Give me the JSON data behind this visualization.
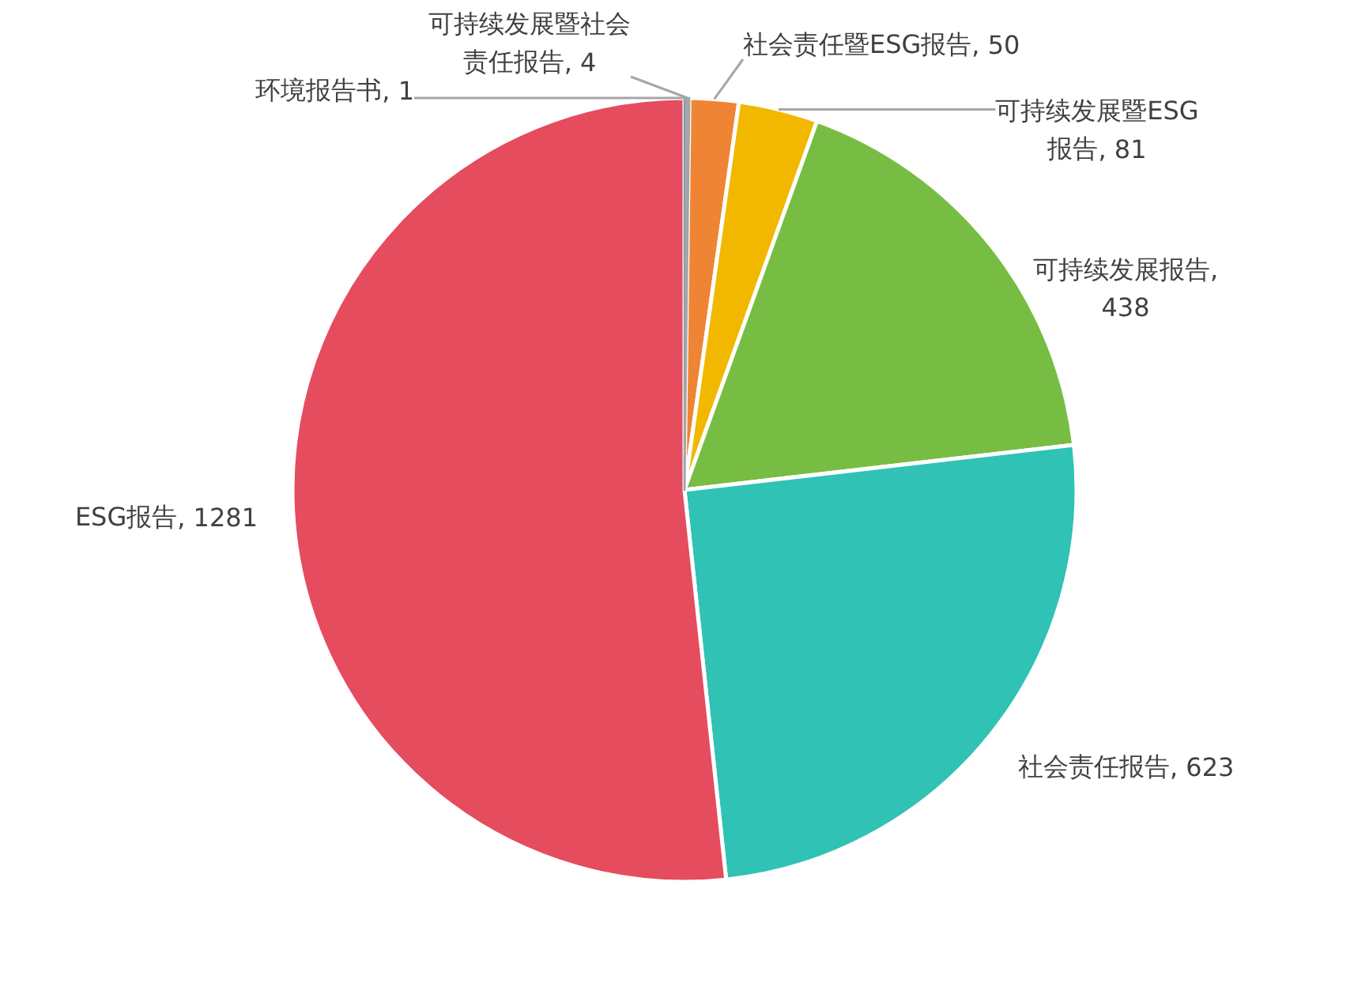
{
  "chart_data": {
    "type": "pie",
    "categories": [
      "环境报告书",
      "可持续发展暨社会责任报告",
      "社会责任暨ESG报告",
      "可持续发展暨ESG报告",
      "可持续发展报告",
      "社会责任报告",
      "ESG报告"
    ],
    "values": [
      1,
      4,
      50,
      81,
      438,
      623,
      1281
    ],
    "value_labels": [
      ", 1",
      ", 4",
      ", 50",
      ", 81",
      ", 438",
      ", 623",
      ", 1281"
    ],
    "colors": [
      "#4e8fd6",
      "#a5a5a5",
      "#ef8534",
      "#f2b800",
      "#78bd43",
      "#2fc2b5",
      "#e54c5e"
    ]
  }
}
